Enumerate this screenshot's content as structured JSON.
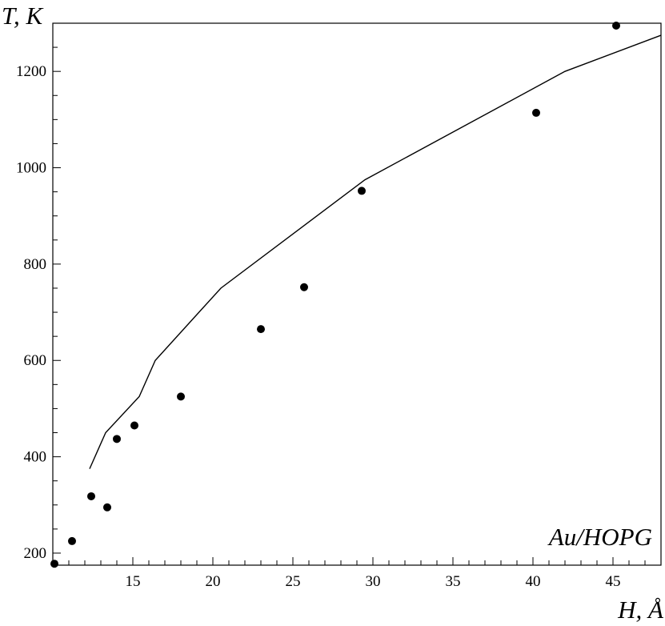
{
  "chart_data": {
    "type": "scatter",
    "xlabel": "H, Å",
    "ylabel": "T, K",
    "annotation": "Au/HOPG",
    "xlim": [
      10,
      48
    ],
    "ylim": [
      175,
      1300
    ],
    "x_ticks": [
      15,
      20,
      25,
      30,
      35,
      40,
      45
    ],
    "y_ticks": [
      200,
      400,
      600,
      800,
      1000,
      1200
    ],
    "grid": false,
    "legend": "none",
    "series": [
      {
        "kind": "points",
        "x": [
          10.1,
          11.2,
          12.4,
          13.4,
          14.0,
          15.1,
          18.0,
          23.0,
          25.7,
          29.3,
          40.2,
          45.2
        ],
        "y": [
          178,
          225,
          318,
          295,
          437,
          465,
          525,
          665,
          752,
          952,
          1114,
          1295
        ]
      },
      {
        "kind": "line",
        "x": [
          12.3,
          13.3,
          15.4,
          16.4,
          20.5,
          29.5,
          42.0,
          48.0
        ],
        "y": [
          375,
          450,
          525,
          600,
          750,
          975,
          1200,
          1275
        ]
      }
    ]
  }
}
